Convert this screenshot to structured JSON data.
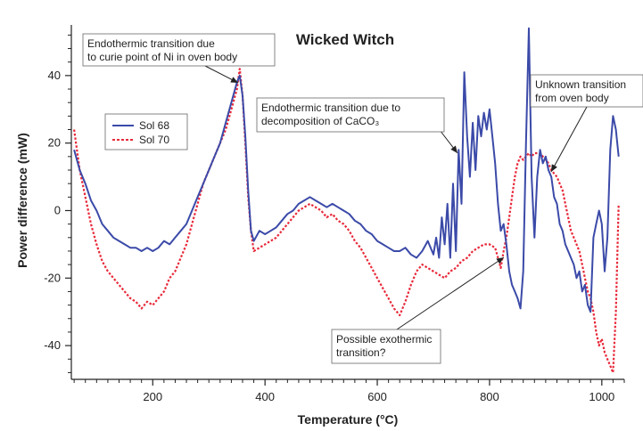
{
  "chart_data": {
    "type": "line",
    "title": "Wicked Witch",
    "xlabel": "Temperature (°C)",
    "ylabel": "Power difference (mW)",
    "xlim": [
      55,
      1040
    ],
    "ylim": [
      -50,
      55
    ],
    "xticks": [
      "200",
      "400",
      "600",
      "800",
      "1000"
    ],
    "yticks": [
      "40",
      "20",
      "0",
      "-20",
      "-40"
    ],
    "grid": false,
    "legend_position": "upper-left",
    "series": [
      {
        "name": "Sol 68",
        "color": "#3b4aa8",
        "style": "solid",
        "points": [
          [
            60,
            18
          ],
          [
            70,
            12
          ],
          [
            80,
            8
          ],
          [
            90,
            3
          ],
          [
            100,
            0
          ],
          [
            110,
            -4
          ],
          [
            120,
            -6
          ],
          [
            130,
            -8
          ],
          [
            140,
            -9
          ],
          [
            150,
            -10
          ],
          [
            160,
            -11
          ],
          [
            170,
            -11
          ],
          [
            180,
            -12
          ],
          [
            190,
            -11
          ],
          [
            200,
            -12
          ],
          [
            210,
            -11
          ],
          [
            220,
            -9
          ],
          [
            230,
            -10
          ],
          [
            240,
            -8
          ],
          [
            250,
            -6
          ],
          [
            260,
            -4
          ],
          [
            270,
            0
          ],
          [
            280,
            4
          ],
          [
            290,
            8
          ],
          [
            300,
            12
          ],
          [
            310,
            16
          ],
          [
            320,
            20
          ],
          [
            330,
            26
          ],
          [
            340,
            32
          ],
          [
            350,
            38
          ],
          [
            355,
            40
          ],
          [
            360,
            34
          ],
          [
            365,
            22
          ],
          [
            370,
            6
          ],
          [
            375,
            -6
          ],
          [
            380,
            -9
          ],
          [
            390,
            -6
          ],
          [
            400,
            -7
          ],
          [
            410,
            -6
          ],
          [
            420,
            -5
          ],
          [
            430,
            -3
          ],
          [
            440,
            -1
          ],
          [
            450,
            0
          ],
          [
            460,
            2
          ],
          [
            470,
            3
          ],
          [
            480,
            4
          ],
          [
            490,
            3
          ],
          [
            500,
            2
          ],
          [
            510,
            1
          ],
          [
            520,
            2
          ],
          [
            530,
            1
          ],
          [
            540,
            0
          ],
          [
            550,
            -1
          ],
          [
            560,
            -3
          ],
          [
            570,
            -4
          ],
          [
            580,
            -6
          ],
          [
            590,
            -7
          ],
          [
            600,
            -9
          ],
          [
            610,
            -10
          ],
          [
            620,
            -11
          ],
          [
            630,
            -12
          ],
          [
            640,
            -12
          ],
          [
            650,
            -11
          ],
          [
            660,
            -13
          ],
          [
            670,
            -14
          ],
          [
            680,
            -12
          ],
          [
            690,
            -9
          ],
          [
            700,
            -13
          ],
          [
            705,
            -8
          ],
          [
            710,
            -14
          ],
          [
            715,
            -2
          ],
          [
            720,
            -10
          ],
          [
            725,
            2
          ],
          [
            730,
            -14
          ],
          [
            735,
            8
          ],
          [
            740,
            -12
          ],
          [
            745,
            18
          ],
          [
            750,
            2
          ],
          [
            755,
            41
          ],
          [
            760,
            22
          ],
          [
            765,
            10
          ],
          [
            770,
            26
          ],
          [
            775,
            12
          ],
          [
            780,
            28
          ],
          [
            785,
            22
          ],
          [
            790,
            29
          ],
          [
            795,
            24
          ],
          [
            800,
            30
          ],
          [
            805,
            22
          ],
          [
            810,
            14
          ],
          [
            815,
            2
          ],
          [
            820,
            -6
          ],
          [
            825,
            -4
          ],
          [
            830,
            -10
          ],
          [
            835,
            -18
          ],
          [
            840,
            -22
          ],
          [
            845,
            -24
          ],
          [
            850,
            -26
          ],
          [
            855,
            -29
          ],
          [
            860,
            -18
          ],
          [
            865,
            20
          ],
          [
            870,
            54
          ],
          [
            875,
            10
          ],
          [
            880,
            -8
          ],
          [
            885,
            10
          ],
          [
            890,
            18
          ],
          [
            895,
            14
          ],
          [
            900,
            16
          ],
          [
            905,
            12
          ],
          [
            910,
            10
          ],
          [
            915,
            4
          ],
          [
            920,
            2
          ],
          [
            925,
            -4
          ],
          [
            930,
            -6
          ],
          [
            935,
            -10
          ],
          [
            940,
            -12
          ],
          [
            945,
            -14
          ],
          [
            950,
            -16
          ],
          [
            955,
            -20
          ],
          [
            960,
            -18
          ],
          [
            965,
            -24
          ],
          [
            970,
            -22
          ],
          [
            975,
            -28
          ],
          [
            980,
            -30
          ],
          [
            985,
            -8
          ],
          [
            990,
            -4
          ],
          [
            995,
            0
          ],
          [
            1000,
            -4
          ],
          [
            1005,
            -18
          ],
          [
            1010,
            -8
          ],
          [
            1015,
            18
          ],
          [
            1020,
            28
          ],
          [
            1025,
            24
          ],
          [
            1030,
            16
          ]
        ]
      },
      {
        "name": "Sol 70",
        "color": "#e8293a",
        "style": "dotted",
        "points": [
          [
            60,
            24
          ],
          [
            70,
            12
          ],
          [
            80,
            4
          ],
          [
            90,
            -4
          ],
          [
            100,
            -10
          ],
          [
            110,
            -15
          ],
          [
            120,
            -18
          ],
          [
            130,
            -20
          ],
          [
            140,
            -22
          ],
          [
            150,
            -24
          ],
          [
            160,
            -26
          ],
          [
            170,
            -27
          ],
          [
            180,
            -29
          ],
          [
            190,
            -27
          ],
          [
            200,
            -28
          ],
          [
            210,
            -26
          ],
          [
            220,
            -24
          ],
          [
            230,
            -20
          ],
          [
            240,
            -18
          ],
          [
            250,
            -14
          ],
          [
            260,
            -10
          ],
          [
            270,
            -4
          ],
          [
            280,
            2
          ],
          [
            290,
            8
          ],
          [
            300,
            12
          ],
          [
            310,
            16
          ],
          [
            320,
            20
          ],
          [
            330,
            24
          ],
          [
            340,
            30
          ],
          [
            350,
            36
          ],
          [
            355,
            42
          ],
          [
            360,
            34
          ],
          [
            365,
            20
          ],
          [
            370,
            4
          ],
          [
            375,
            -6
          ],
          [
            380,
            -12
          ],
          [
            390,
            -11
          ],
          [
            400,
            -10
          ],
          [
            410,
            -9
          ],
          [
            420,
            -8
          ],
          [
            430,
            -6
          ],
          [
            440,
            -4
          ],
          [
            450,
            -2
          ],
          [
            460,
            0
          ],
          [
            470,
            1
          ],
          [
            480,
            2
          ],
          [
            490,
            1
          ],
          [
            500,
            0
          ],
          [
            510,
            -2
          ],
          [
            520,
            -1
          ],
          [
            530,
            -3
          ],
          [
            540,
            -4
          ],
          [
            550,
            -6
          ],
          [
            560,
            -9
          ],
          [
            570,
            -11
          ],
          [
            580,
            -14
          ],
          [
            590,
            -17
          ],
          [
            600,
            -20
          ],
          [
            610,
            -23
          ],
          [
            620,
            -26
          ],
          [
            630,
            -29
          ],
          [
            640,
            -31
          ],
          [
            650,
            -27
          ],
          [
            660,
            -22
          ],
          [
            670,
            -18
          ],
          [
            680,
            -16
          ],
          [
            690,
            -17
          ],
          [
            700,
            -18
          ],
          [
            710,
            -19
          ],
          [
            720,
            -20
          ],
          [
            730,
            -18
          ],
          [
            740,
            -17
          ],
          [
            750,
            -15
          ],
          [
            760,
            -14
          ],
          [
            770,
            -12
          ],
          [
            780,
            -11
          ],
          [
            790,
            -10
          ],
          [
            800,
            -10
          ],
          [
            810,
            -11
          ],
          [
            815,
            -14
          ],
          [
            820,
            -17
          ],
          [
            825,
            -12
          ],
          [
            830,
            -8
          ],
          [
            835,
            -2
          ],
          [
            840,
            4
          ],
          [
            845,
            10
          ],
          [
            850,
            14
          ],
          [
            855,
            16
          ],
          [
            860,
            15
          ],
          [
            865,
            16
          ],
          [
            870,
            17
          ],
          [
            875,
            16
          ],
          [
            880,
            17
          ],
          [
            885,
            17
          ],
          [
            890,
            17
          ],
          [
            895,
            16
          ],
          [
            900,
            15
          ],
          [
            905,
            14
          ],
          [
            910,
            12
          ],
          [
            915,
            11
          ],
          [
            920,
            10
          ],
          [
            925,
            8
          ],
          [
            930,
            6
          ],
          [
            935,
            2
          ],
          [
            940,
            -2
          ],
          [
            945,
            -6
          ],
          [
            950,
            -8
          ],
          [
            955,
            -10
          ],
          [
            960,
            -12
          ],
          [
            965,
            -16
          ],
          [
            970,
            -20
          ],
          [
            975,
            -24
          ],
          [
            980,
            -26
          ],
          [
            985,
            -30
          ],
          [
            990,
            -36
          ],
          [
            995,
            -40
          ],
          [
            1000,
            -38
          ],
          [
            1005,
            -42
          ],
          [
            1010,
            -44
          ],
          [
            1015,
            -46
          ],
          [
            1020,
            -48
          ],
          [
            1025,
            -30
          ],
          [
            1030,
            2
          ]
        ]
      }
    ],
    "annotations": [
      {
        "text": [
          "Endothermic transition due",
          "to curie point of Ni in oven body"
        ],
        "target": [
          355,
          40
        ]
      },
      {
        "text": [
          "Endothermic transition due to",
          "decomposition of CaCO₃"
        ],
        "target": [
          752,
          18
        ]
      },
      {
        "text": [
          "Unknown transition",
          "from oven body"
        ],
        "target": [
          915,
          10
        ]
      },
      {
        "text": [
          "Possible exothermic",
          "transition?"
        ],
        "target": [
          835,
          -14
        ]
      }
    ]
  }
}
